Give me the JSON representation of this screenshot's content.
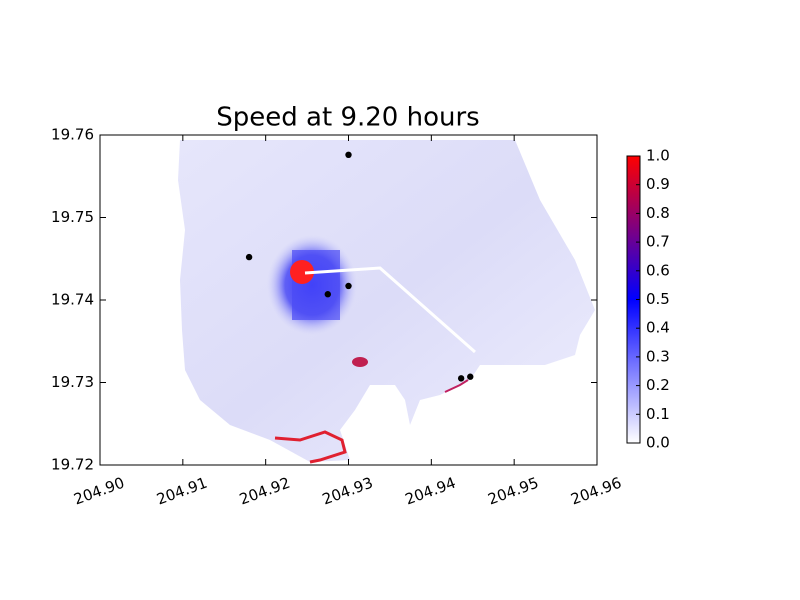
{
  "chart_data": {
    "type": "scatter",
    "title": "Speed at 9.20 hours",
    "x": [
      204.93,
      204.918,
      204.93,
      204.9275,
      204.9436,
      204.9447
    ],
    "y": [
      19.7576,
      19.7452,
      19.7417,
      19.7407,
      19.7305,
      19.7307
    ],
    "color": "#000000",
    "xlim": [
      204.9,
      204.96
    ],
    "xticks": [
      {
        "value": 204.9,
        "label": "204.90"
      },
      204.91,
      204.92,
      204.93,
      204.94,
      204.95,
      204.96
    ],
    "ylim": [
      19.72,
      19.76
    ],
    "yticks": [
      19.72,
      19.73,
      19.74,
      19.75,
      19.76
    ],
    "colorbar": {
      "lim": [
        0,
        1
      ],
      "colors": [
        "#ffffff",
        "#0000ff",
        "#ff0000"
      ],
      "ticks": [
        {
          "value": 0,
          "label": "0.0"
        },
        0.1,
        0.2,
        0.3,
        0.4,
        0.5,
        0.6,
        0.7,
        0.8,
        0.9,
        {
          "value": 1,
          "label": "1.0"
        }
      ]
    }
  }
}
